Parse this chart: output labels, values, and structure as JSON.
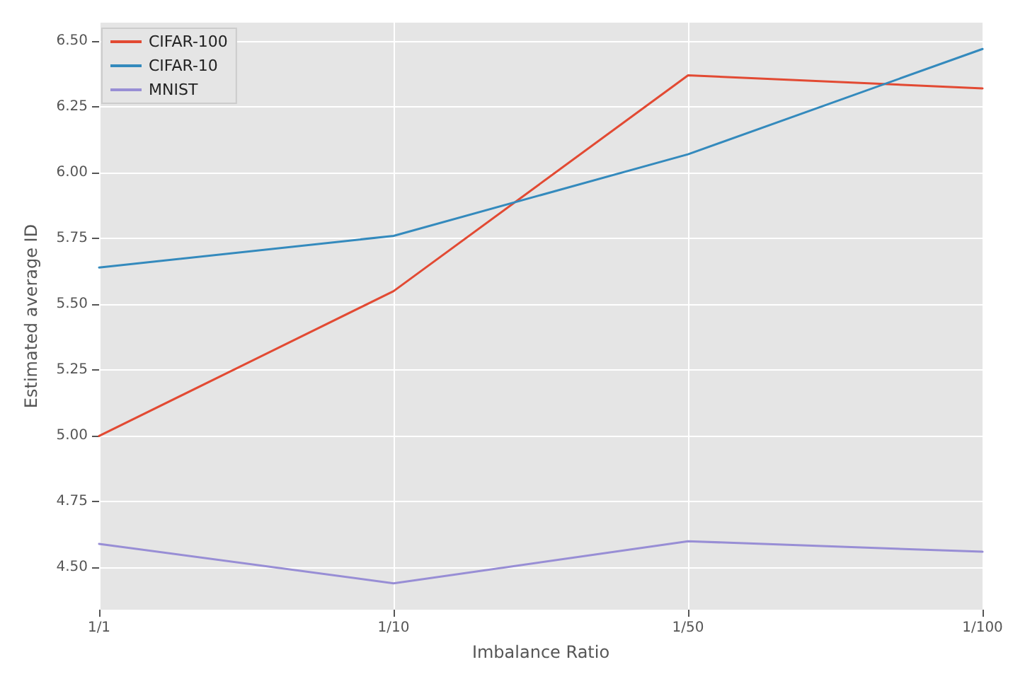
{
  "chart_data": {
    "type": "line",
    "xlabel": "Imbalance Ratio",
    "ylabel": "Estimated average ID",
    "categories": [
      "1/1",
      "1/10",
      "1/50",
      "1/100"
    ],
    "series": [
      {
        "name": "CIFAR-100",
        "color": "#e24a33",
        "values": [
          5.0,
          5.55,
          6.37,
          6.32
        ]
      },
      {
        "name": "CIFAR-10",
        "color": "#348abd",
        "values": [
          5.64,
          5.76,
          6.07,
          6.47
        ]
      },
      {
        "name": "MNIST",
        "color": "#988ed5",
        "values": [
          4.59,
          4.44,
          4.6,
          4.56
        ]
      }
    ],
    "ylim": [
      4.34,
      6.57
    ],
    "yticks": [
      {
        "value": 4.5,
        "label": "4.50"
      },
      {
        "value": 4.75,
        "label": "4.75"
      },
      {
        "value": 5.0,
        "label": "5.00"
      },
      {
        "value": 5.25,
        "label": "5.25"
      },
      {
        "value": 5.5,
        "label": "5.50"
      },
      {
        "value": 5.75,
        "label": "5.75"
      },
      {
        "value": 6.0,
        "label": "6.00"
      },
      {
        "value": 6.25,
        "label": "6.25"
      },
      {
        "value": 6.5,
        "label": "6.50"
      }
    ],
    "grid": true,
    "legend": "top left",
    "marker": "none",
    "line_style": "solid"
  }
}
